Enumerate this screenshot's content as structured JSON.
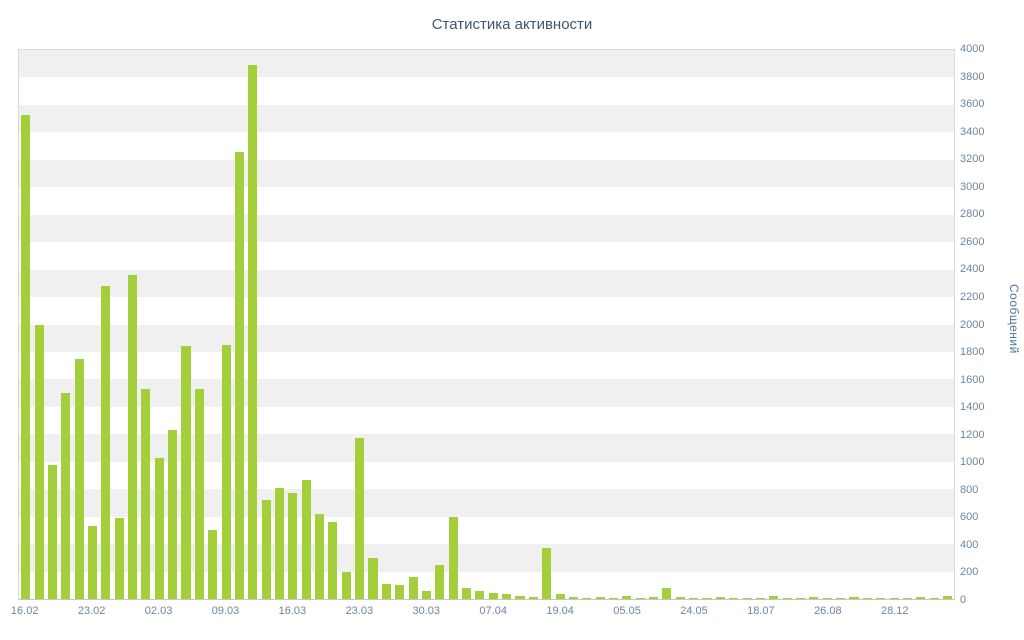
{
  "chart_data": {
    "type": "bar",
    "title": "Статистика активности",
    "xlabel": "",
    "ylabel": "Сообщений",
    "ylim": [
      0,
      4000
    ],
    "y_tick_step": 200,
    "grid": "alternating-horizontal-bands",
    "legend": "none",
    "yaxis_side": "right",
    "bar_color": "#A2CF3A",
    "band_color": "#F0F0F0",
    "x_tick_labels": [
      "16.02",
      "23.02",
      "02.03",
      "09.03",
      "16.03",
      "23.03",
      "30.03",
      "07.04",
      "19.04",
      "05.05",
      "24.05",
      "18.07",
      "26.08",
      "28.12"
    ],
    "x_tick_every": 5,
    "values": [
      3530,
      2000,
      980,
      1500,
      1750,
      530,
      2280,
      590,
      2360,
      1530,
      1030,
      1230,
      1840,
      1530,
      500,
      1850,
      3260,
      3890,
      720,
      810,
      770,
      870,
      620,
      560,
      200,
      1170,
      300,
      110,
      100,
      160,
      60,
      250,
      600,
      80,
      55,
      45,
      35,
      25,
      15,
      370,
      40,
      15,
      10,
      15,
      10,
      20,
      10,
      15,
      80,
      15,
      10,
      10,
      15,
      10,
      10,
      10,
      20,
      10,
      10,
      15,
      10,
      10,
      15,
      10,
      10,
      10,
      10,
      15,
      10,
      25
    ]
  }
}
